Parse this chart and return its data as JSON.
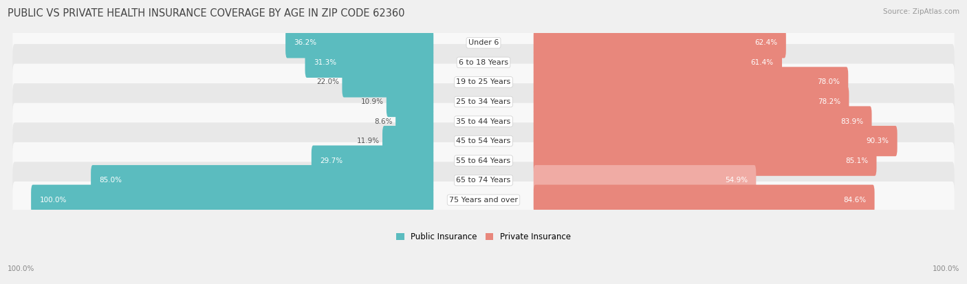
{
  "title": "PUBLIC VS PRIVATE HEALTH INSURANCE COVERAGE BY AGE IN ZIP CODE 62360",
  "source": "Source: ZipAtlas.com",
  "categories": [
    "Under 6",
    "6 to 18 Years",
    "19 to 25 Years",
    "25 to 34 Years",
    "35 to 44 Years",
    "45 to 54 Years",
    "55 to 64 Years",
    "65 to 74 Years",
    "75 Years and over"
  ],
  "public_values": [
    36.2,
    31.3,
    22.0,
    10.9,
    8.6,
    11.9,
    29.7,
    85.0,
    100.0
  ],
  "private_values": [
    62.4,
    61.4,
    78.0,
    78.2,
    83.9,
    90.3,
    85.1,
    54.9,
    84.6
  ],
  "public_color": "#5bbcbf",
  "private_color": "#e8877c",
  "private_color_light": "#f0aba4",
  "public_label": "Public Insurance",
  "private_label": "Private Insurance",
  "bg_color": "#f0f0f0",
  "row_bg_odd": "#f8f8f8",
  "row_bg_even": "#e8e8e8",
  "title_fontsize": 10.5,
  "source_fontsize": 7.5,
  "label_fontsize": 8,
  "value_fontsize": 7.5,
  "axis_max": 100.0
}
